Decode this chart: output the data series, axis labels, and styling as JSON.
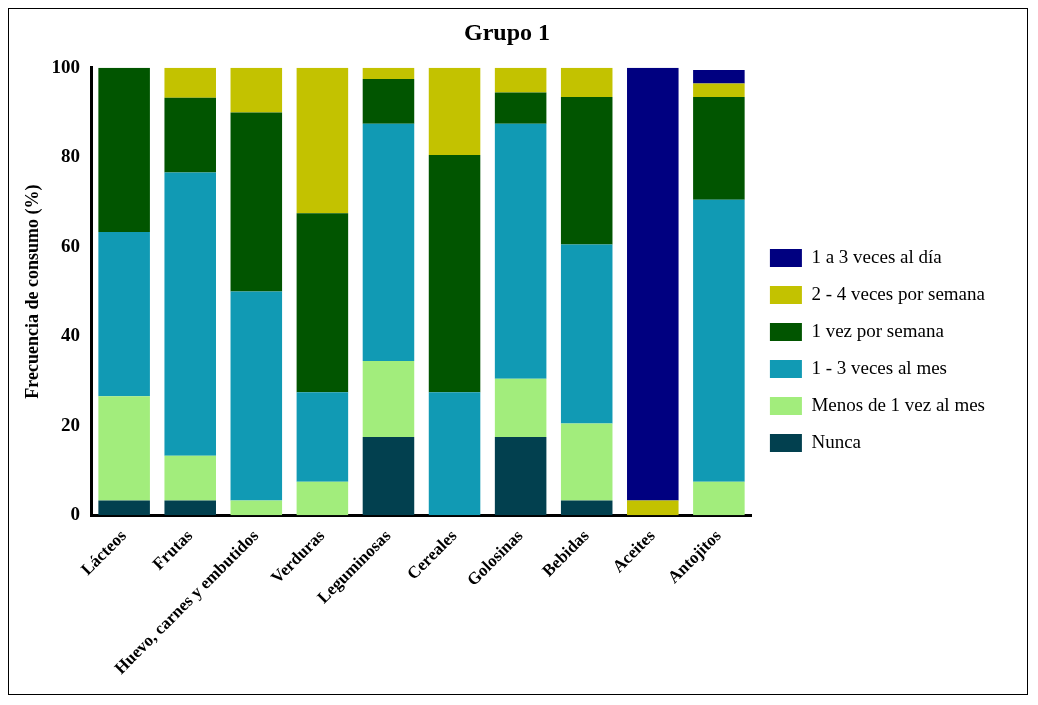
{
  "chart_data": {
    "type": "bar",
    "stacked": true,
    "title": "Grupo 1",
    "ylabel": "Frecuencia de consumo (%)",
    "categories": [
      "Lácteos",
      "Frutas",
      "Huevo, carnes y embutidos",
      "Verduras",
      "Leguminosas",
      "Cereales",
      "Golosinas",
      "Bebidas",
      "Aceites",
      "Antojitos"
    ],
    "series": [
      {
        "name": "Nunca",
        "color": "#02404f",
        "values": [
          3.3,
          3.3,
          0,
          0,
          17.5,
          0,
          17.5,
          3.3,
          0,
          0
        ]
      },
      {
        "name": "Menos de 1 vez al mes",
        "color": "#a2ed7c",
        "values": [
          23.3,
          10,
          3.3,
          7.5,
          17,
          0,
          13,
          17.2,
          0,
          7.5
        ]
      },
      {
        "name": "1 - 3 veces al mes",
        "color": "#119ab4",
        "values": [
          36.7,
          63.3,
          46.7,
          20,
          53,
          27.5,
          57,
          40,
          0,
          63
        ]
      },
      {
        "name": "1 vez por semana",
        "color": "#015500",
        "values": [
          36.7,
          16.7,
          40,
          40,
          10,
          53,
          7,
          33,
          0,
          23
        ]
      },
      {
        "name": "2 - 4 veces por semana",
        "color": "#c3c200",
        "values": [
          0,
          6.7,
          10,
          32.5,
          2.5,
          19.5,
          5.5,
          6.5,
          3.3,
          3
        ]
      },
      {
        "name": "1 a 3 veces al día",
        "color": "#000080",
        "values": [
          0,
          0,
          0,
          0,
          0,
          0,
          0,
          0,
          96.7,
          3
        ]
      }
    ],
    "ylim": [
      0,
      100
    ],
    "yticks": [
      0,
      20,
      40,
      60,
      80,
      100
    ],
    "grid": false,
    "legend": "right"
  }
}
